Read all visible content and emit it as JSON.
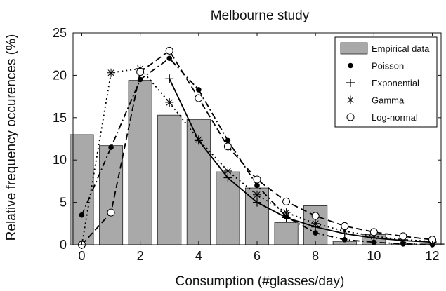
{
  "chart_data": {
    "type": "bar",
    "title": "Melbourne  study",
    "xlabel": "Consumption (#glasses/day)",
    "ylabel": "Relative frequency occurences (%)",
    "xlim": [
      -0.3,
      12.3
    ],
    "ylim": [
      0,
      25
    ],
    "xticks": [
      0,
      2,
      4,
      6,
      8,
      10,
      12
    ],
    "yticks": [
      0,
      5,
      10,
      15,
      20,
      25
    ],
    "grid": false,
    "legend_position": "top-right",
    "categories": [
      0,
      1,
      2,
      3,
      4,
      5,
      6,
      7,
      8,
      9,
      10,
      11,
      12
    ],
    "bars": {
      "name": "Empirical data",
      "values": [
        13.0,
        11.7,
        19.4,
        15.3,
        14.8,
        8.6,
        6.7,
        2.6,
        4.6,
        0.4,
        1.2,
        0.2,
        0.1
      ]
    },
    "series": [
      {
        "name": "Poisson",
        "marker": "dot",
        "dash": "dashdot",
        "x": [
          0,
          1,
          2,
          3,
          4,
          5,
          6,
          7,
          8,
          9,
          10,
          11,
          12
        ],
        "values": [
          3.5,
          11.5,
          19.5,
          22.0,
          18.3,
          12.3,
          7.0,
          3.3,
          1.4,
          0.6,
          0.3,
          0.1,
          0.0
        ]
      },
      {
        "name": "Exponential",
        "marker": "plus",
        "dash": "solid",
        "x": [
          3,
          4,
          5,
          6,
          7,
          8,
          9,
          10,
          11,
          12
        ],
        "values": [
          19.6,
          12.3,
          7.9,
          5.0,
          3.2,
          2.1,
          1.3,
          0.8,
          0.5,
          0.3
        ]
      },
      {
        "name": "Gamma",
        "marker": "asterisk",
        "dash": "dotted",
        "x": [
          0,
          1,
          2,
          3,
          4,
          5,
          6,
          7,
          8,
          9,
          10,
          11,
          12
        ],
        "values": [
          0.0,
          20.3,
          20.8,
          16.8,
          12.4,
          8.7,
          5.9,
          3.8,
          2.5,
          1.6,
          1.0,
          0.6,
          0.4
        ]
      },
      {
        "name": "Log-normal",
        "marker": "circle",
        "dash": "dashed",
        "x": [
          0,
          1,
          2,
          3,
          4,
          5,
          6,
          7,
          8,
          9,
          10,
          11,
          12
        ],
        "values": [
          0.0,
          3.8,
          20.4,
          22.9,
          17.3,
          11.6,
          7.7,
          5.1,
          3.4,
          2.2,
          1.5,
          1.0,
          0.6
        ]
      }
    ]
  }
}
